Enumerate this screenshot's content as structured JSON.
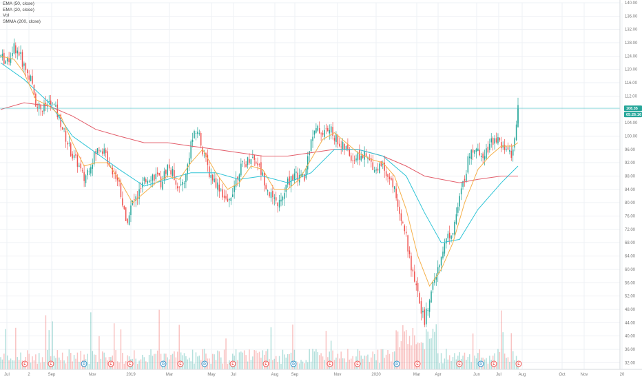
{
  "legend": [
    {
      "label": "EMA (50, close)",
      "color": "#2b8ec7"
    },
    {
      "label": "EMA (20, close)",
      "color": "#f2a41c"
    },
    {
      "label": "Vol",
      "color": "#777777"
    },
    {
      "label": "SMMA (200, close)",
      "color": "#e84a5f"
    }
  ],
  "price_labels": {
    "last_price": "108.35",
    "countdown": "05:26:16"
  },
  "colors": {
    "up": "#26a69a",
    "down": "#ef5350",
    "ema50": "#2ec4d6",
    "ema20": "#f5b04a",
    "smma200": "#e35d6a",
    "last_line": "#4cc2c8",
    "badge": "#26a69a"
  },
  "events": [
    "E",
    "E",
    "D",
    "E",
    "E",
    "D",
    "E",
    "D",
    "E",
    "E",
    "D",
    "E",
    "E",
    "D",
    "E",
    "E",
    "D",
    "E",
    "E"
  ],
  "chart_data": {
    "type": "candlestick",
    "title": "",
    "ylim": [
      30,
      140
    ],
    "y_ticks": [
      "32.00",
      "36.00",
      "40.00",
      "44.00",
      "48.00",
      "52.00",
      "56.00",
      "60.00",
      "64.00",
      "68.00",
      "72.00",
      "76.00",
      "80.00",
      "84.00",
      "88.00",
      "92.00",
      "96.00",
      "100.00",
      "104.00",
      "108.00",
      "112.00",
      "116.00",
      "120.00",
      "124.00",
      "128.00",
      "132.00",
      "136.00",
      "140.00"
    ],
    "x_ticks": [
      "Jul",
      "2",
      "Sep",
      "Nov",
      "2019",
      "Mar",
      "May",
      "Jul",
      "Aug",
      "Sep",
      "Nov",
      "2020",
      "Mar",
      "Apr",
      "Jun",
      "Jul",
      "Aug",
      "Oct",
      "Nov",
      "20"
    ],
    "last_price": 108.35,
    "price_path": [
      [
        0,
        124
      ],
      [
        4,
        122
      ],
      [
        8,
        127
      ],
      [
        11,
        125
      ],
      [
        14,
        121
      ],
      [
        18,
        117
      ],
      [
        21,
        110
      ],
      [
        25,
        108
      ],
      [
        29,
        110
      ],
      [
        32,
        109
      ],
      [
        36,
        104
      ],
      [
        40,
        98
      ],
      [
        43,
        94
      ],
      [
        46,
        92
      ],
      [
        50,
        87
      ],
      [
        53,
        91
      ],
      [
        57,
        95
      ],
      [
        60,
        97
      ],
      [
        64,
        93
      ],
      [
        68,
        89
      ],
      [
        71,
        86
      ],
      [
        75,
        74
      ],
      [
        79,
        80
      ],
      [
        82,
        82
      ],
      [
        86,
        86
      ],
      [
        89,
        88
      ],
      [
        93,
        88
      ],
      [
        96,
        86
      ],
      [
        100,
        91
      ],
      [
        104,
        88
      ],
      [
        107,
        84
      ],
      [
        111,
        88
      ],
      [
        114,
        98
      ],
      [
        118,
        102
      ],
      [
        121,
        96
      ],
      [
        125,
        89
      ],
      [
        129,
        86
      ],
      [
        132,
        84
      ],
      [
        136,
        79
      ],
      [
        139,
        84
      ],
      [
        143,
        90
      ],
      [
        147,
        92
      ],
      [
        150,
        94
      ],
      [
        154,
        92
      ],
      [
        157,
        88
      ],
      [
        161,
        83
      ],
      [
        164,
        80
      ],
      [
        168,
        80
      ],
      [
        172,
        86
      ],
      [
        175,
        88
      ],
      [
        179,
        88
      ],
      [
        182,
        87
      ],
      [
        186,
        100
      ],
      [
        190,
        102
      ],
      [
        193,
        101
      ],
      [
        197,
        102
      ],
      [
        200,
        100
      ],
      [
        204,
        97
      ],
      [
        207,
        96
      ],
      [
        211,
        93
      ],
      [
        214,
        94
      ],
      [
        218,
        94
      ],
      [
        222,
        92
      ],
      [
        225,
        90
      ],
      [
        229,
        92
      ],
      [
        232,
        88
      ],
      [
        236,
        84
      ],
      [
        239,
        78
      ],
      [
        243,
        70
      ],
      [
        246,
        60
      ],
      [
        250,
        52
      ],
      [
        254,
        44
      ],
      [
        257,
        52
      ],
      [
        261,
        58
      ],
      [
        264,
        65
      ],
      [
        268,
        70
      ],
      [
        271,
        72
      ],
      [
        275,
        81
      ],
      [
        278,
        88
      ],
      [
        282,
        97
      ],
      [
        286,
        95
      ],
      [
        289,
        95
      ],
      [
        293,
        97
      ],
      [
        296,
        100
      ],
      [
        300,
        97
      ],
      [
        303,
        95
      ],
      [
        307,
        95
      ],
      [
        310,
        108
      ]
    ],
    "ema20": [
      [
        0,
        124
      ],
      [
        8,
        123
      ],
      [
        14,
        119
      ],
      [
        21,
        111
      ],
      [
        29,
        109
      ],
      [
        36,
        106
      ],
      [
        43,
        98
      ],
      [
        50,
        91
      ],
      [
        57,
        92
      ],
      [
        64,
        92
      ],
      [
        71,
        87
      ],
      [
        79,
        80
      ],
      [
        86,
        83
      ],
      [
        93,
        86
      ],
      [
        100,
        88
      ],
      [
        107,
        87
      ],
      [
        114,
        92
      ],
      [
        121,
        96
      ],
      [
        129,
        89
      ],
      [
        136,
        84
      ],
      [
        143,
        86
      ],
      [
        150,
        91
      ],
      [
        157,
        90
      ],
      [
        164,
        84
      ],
      [
        172,
        84
      ],
      [
        179,
        87
      ],
      [
        186,
        93
      ],
      [
        193,
        99
      ],
      [
        200,
        101
      ],
      [
        207,
        98
      ],
      [
        214,
        95
      ],
      [
        222,
        93
      ],
      [
        229,
        92
      ],
      [
        236,
        88
      ],
      [
        243,
        78
      ],
      [
        250,
        64
      ],
      [
        257,
        55
      ],
      [
        264,
        60
      ],
      [
        271,
        68
      ],
      [
        278,
        80
      ],
      [
        286,
        90
      ],
      [
        293,
        94
      ],
      [
        300,
        97
      ],
      [
        307,
        97
      ],
      [
        310,
        98
      ]
    ],
    "ema50": [
      [
        0,
        122
      ],
      [
        14,
        117
      ],
      [
        29,
        110
      ],
      [
        43,
        100
      ],
      [
        57,
        95
      ],
      [
        71,
        90
      ],
      [
        86,
        85
      ],
      [
        100,
        87
      ],
      [
        114,
        89
      ],
      [
        129,
        89
      ],
      [
        143,
        87
      ],
      [
        157,
        88
      ],
      [
        172,
        86
      ],
      [
        186,
        89
      ],
      [
        200,
        96
      ],
      [
        214,
        96
      ],
      [
        229,
        94
      ],
      [
        243,
        88
      ],
      [
        254,
        77
      ],
      [
        264,
        68
      ],
      [
        275,
        69
      ],
      [
        286,
        78
      ],
      [
        300,
        86
      ],
      [
        310,
        91
      ]
    ],
    "smma200": [
      [
        0,
        108
      ],
      [
        14,
        110
      ],
      [
        29,
        109
      ],
      [
        43,
        106
      ],
      [
        57,
        102
      ],
      [
        71,
        100
      ],
      [
        86,
        98
      ],
      [
        100,
        98
      ],
      [
        114,
        97
      ],
      [
        129,
        96
      ],
      [
        143,
        95
      ],
      [
        157,
        94
      ],
      [
        172,
        94
      ],
      [
        186,
        95
      ],
      [
        200,
        96
      ],
      [
        214,
        96
      ],
      [
        229,
        94
      ],
      [
        243,
        91
      ],
      [
        254,
        88
      ],
      [
        264,
        87
      ],
      [
        275,
        86
      ],
      [
        286,
        87
      ],
      [
        300,
        88
      ],
      [
        310,
        88
      ]
    ]
  }
}
